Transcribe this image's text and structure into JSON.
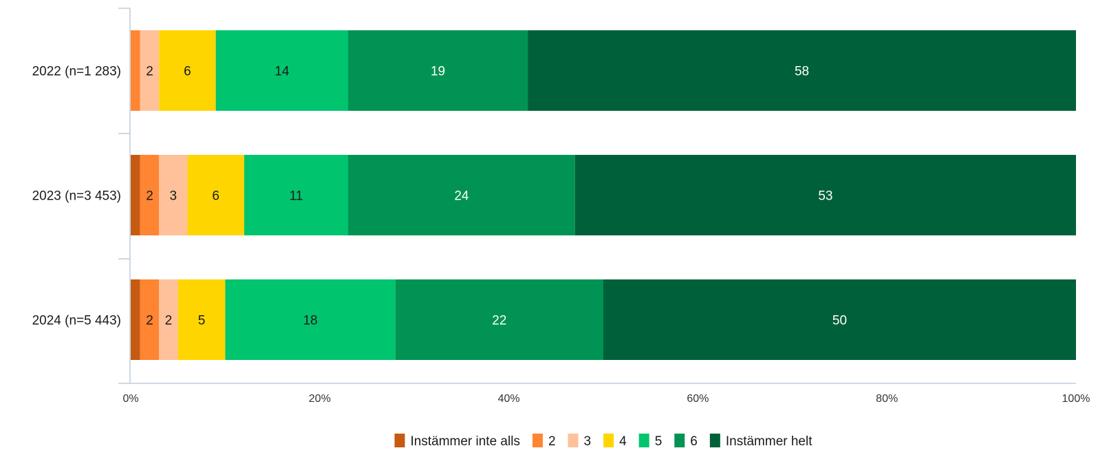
{
  "chart_data": {
    "type": "bar",
    "orientation": "horizontal",
    "stacked": true,
    "categories": [
      "2022 (n=1 283)",
      "2023 (n=3 453)",
      "2024 (n=5 443)"
    ],
    "series": [
      {
        "name": "Instämmer inte alls",
        "color": "#C55A11",
        "values": [
          0,
          1,
          1
        ],
        "labels": [
          "",
          "",
          ""
        ]
      },
      {
        "name": "2",
        "color": "#FF8533",
        "values": [
          1,
          2,
          2
        ],
        "labels": [
          "",
          "2",
          "2"
        ]
      },
      {
        "name": "3",
        "color": "#FFC19A",
        "values": [
          2,
          3,
          2
        ],
        "labels": [
          "2",
          "3",
          "2"
        ]
      },
      {
        "name": "4",
        "color": "#FFD500",
        "values": [
          6,
          6,
          5
        ],
        "labels": [
          "6",
          "6",
          "5"
        ]
      },
      {
        "name": "5",
        "color": "#00C46E",
        "values": [
          14,
          11,
          18
        ],
        "labels": [
          "14",
          "11",
          "18"
        ]
      },
      {
        "name": "6",
        "color": "#009353",
        "values": [
          19,
          24,
          22
        ],
        "labels": [
          "19",
          "24",
          "22"
        ]
      },
      {
        "name": "Instämmer helt",
        "color": "#006039",
        "values": [
          58,
          53,
          50
        ],
        "labels": [
          "58",
          "53",
          "50"
        ]
      }
    ],
    "xlim": [
      0,
      100
    ],
    "x_ticks": [
      "0%",
      "20%",
      "40%",
      "60%",
      "80%",
      "100%"
    ],
    "grid": false,
    "legend_position": "bottom"
  }
}
